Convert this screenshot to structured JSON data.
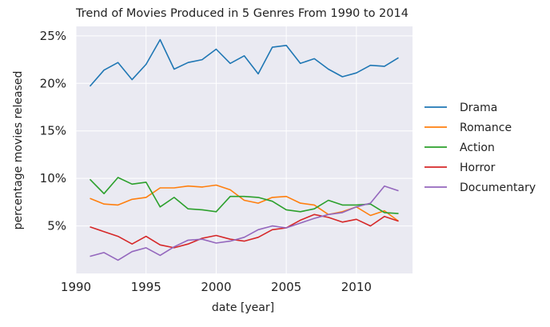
{
  "chart_data": {
    "type": "line",
    "title": "Trend of Movies Produced in 5 Genres From 1990 to 2014",
    "xlabel": "date [year]",
    "ylabel": "percentage movies released",
    "xlim": [
      1990,
      2014
    ],
    "ylim": [
      0,
      26
    ],
    "x_ticks": [
      1990,
      1995,
      2000,
      2005,
      2010
    ],
    "x_tick_labels": [
      "1990",
      "1995",
      "2000",
      "2005",
      "2010"
    ],
    "y_ticks": [
      5,
      10,
      15,
      20,
      25
    ],
    "y_tick_labels": [
      "5%",
      "10%",
      "15%",
      "20%",
      "25%"
    ],
    "grid": true,
    "legend_position": "right",
    "x": [
      1991,
      1992,
      1993,
      1994,
      1995,
      1996,
      1997,
      1998,
      1999,
      2000,
      2001,
      2002,
      2003,
      2004,
      2005,
      2006,
      2007,
      2008,
      2009,
      2010,
      2011,
      2012,
      2013
    ],
    "series": [
      {
        "name": "Drama",
        "color": "#1f77b4",
        "values": [
          19.7,
          21.4,
          22.2,
          20.4,
          22.0,
          24.6,
          21.5,
          22.2,
          22.5,
          23.6,
          22.1,
          22.9,
          21.0,
          23.8,
          24.0,
          22.1,
          22.6,
          21.5,
          20.7,
          21.1,
          21.9,
          21.8,
          22.7
        ]
      },
      {
        "name": "Romance",
        "color": "#ff7f0e",
        "values": [
          7.9,
          7.3,
          7.2,
          7.8,
          8.0,
          9.0,
          9.0,
          9.2,
          9.1,
          9.3,
          8.8,
          7.7,
          7.4,
          8.0,
          8.1,
          7.4,
          7.2,
          6.2,
          6.5,
          7.0,
          6.1,
          6.6,
          5.5
        ]
      },
      {
        "name": "Action",
        "color": "#2ca02c",
        "values": [
          9.9,
          8.4,
          10.1,
          9.4,
          9.6,
          7.0,
          8.0,
          6.8,
          6.7,
          6.5,
          8.1,
          8.1,
          8.0,
          7.6,
          6.7,
          6.5,
          6.8,
          7.7,
          7.2,
          7.2,
          7.3,
          6.4,
          6.3
        ]
      },
      {
        "name": "Horror",
        "color": "#d62728",
        "values": [
          4.9,
          4.4,
          3.9,
          3.1,
          3.9,
          3.0,
          2.7,
          3.1,
          3.7,
          4.0,
          3.6,
          3.4,
          3.8,
          4.6,
          4.8,
          5.6,
          6.2,
          5.9,
          5.4,
          5.7,
          5.0,
          6.0,
          5.5
        ]
      },
      {
        "name": "Documentary",
        "color": "#9467bd",
        "values": [
          1.8,
          2.2,
          1.4,
          2.3,
          2.7,
          1.9,
          2.8,
          3.5,
          3.6,
          3.2,
          3.4,
          3.8,
          4.6,
          5.0,
          4.8,
          5.3,
          5.8,
          6.2,
          6.4,
          7.0,
          7.4,
          9.2,
          8.7
        ]
      }
    ]
  }
}
